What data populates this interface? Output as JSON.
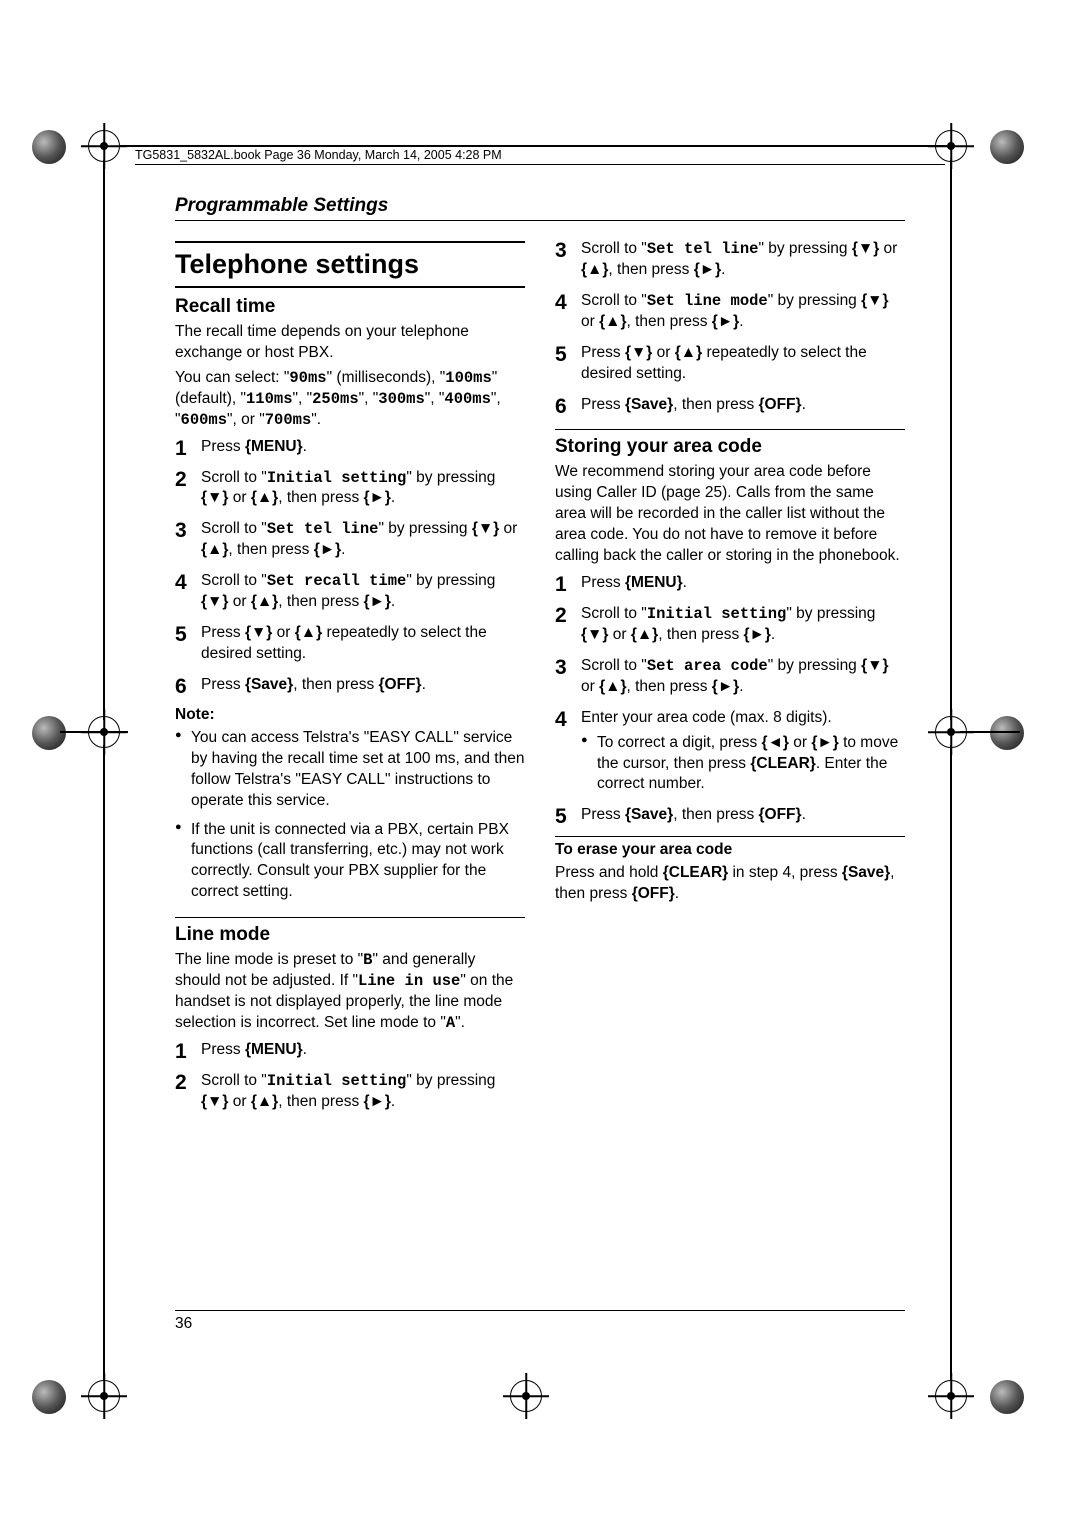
{
  "header": "TG5831_5832AL.book  Page 36  Monday, March 14, 2005  4:28 PM",
  "section_label": "Programmable Settings",
  "title": "Telephone settings",
  "page_number": "36",
  "recall": {
    "heading": "Recall time",
    "intro1": "The recall time depends on your telephone exchange or host PBX.",
    "intro2a": "You can select: \"",
    "ms90": "90ms",
    "intro2b": "\" (milliseconds), \"",
    "ms100": "100ms",
    "intro2c": "\" (default), \"",
    "ms110": "110ms",
    "intro2d": "\", \"",
    "ms250": "250ms",
    "intro2e": "\", \"",
    "ms300": "300ms",
    "intro2f": "\", \"",
    "ms400": "400ms",
    "intro2g": "\", \"",
    "ms600": "600ms",
    "intro2h": "\", or \"",
    "ms700": "700ms",
    "intro2i": "\".",
    "steps": [
      "Press {MENU}.",
      "Scroll to \"<mono>Initial setting</mono>\" by pressing {▼} or {▲}, then press {►}.",
      "Scroll to \"<mono>Set tel line</mono>\" by pressing {▼} or {▲}, then press {►}.",
      "Scroll to \"<mono>Set recall time</mono>\" by pressing {▼} or {▲}, then press {►}.",
      "Press {▼} or {▲} repeatedly to select the desired setting.",
      "Press {Save}, then press {OFF}."
    ],
    "note_label": "Note:",
    "notes": [
      "You can access Telstra's \"EASY CALL\" service by having the recall time set at 100 ms, and then follow Telstra's \"EASY CALL\" instructions to operate this service.",
      "If the unit is connected via a PBX, certain PBX functions (call transferring, etc.) may not work correctly. Consult your PBX supplier for the correct setting."
    ]
  },
  "linemode": {
    "heading": "Line mode",
    "intro_a": "The line mode is preset to \"",
    "B": "B",
    "intro_b": "\" and generally should not be adjusted. If \"",
    "lineinuse": "Line in use",
    "intro_c": "\" on the handset is not displayed properly, the line mode selection is incorrect. Set line mode to \"",
    "A": "A",
    "intro_d": "\".",
    "steps": [
      "Press {MENU}.",
      "Scroll to \"<mono>Initial setting</mono>\" by pressing {▼} or {▲}, then press {►}.",
      "Scroll to \"<mono>Set tel line</mono>\" by pressing {▼} or {▲}, then press {►}.",
      "Scroll to \"<mono>Set line mode</mono>\" by pressing {▼} or {▲}, then press {►}.",
      "Press {▼} or {▲} repeatedly to select the desired setting.",
      "Press {Save}, then press {OFF}."
    ]
  },
  "areacode": {
    "heading": "Storing your area code",
    "intro": "We recommend storing your area code before using Caller ID (page 25). Calls from the same area will be recorded in the caller list without the area code. You do not have to remove it before calling back the caller or storing in the phonebook.",
    "steps": [
      "Press {MENU}.",
      "Scroll to \"<mono>Initial setting</mono>\" by pressing {▼} or {▲}, then press {►}.",
      "Scroll to \"<mono>Set area code</mono>\" by pressing {▼} or {▲}, then press {►}.",
      "Enter your area code (max. 8 digits).",
      "Press {Save}, then press {OFF}."
    ],
    "step4_sub": "To correct a digit, press {◄} or {►} to move the cursor, then press {CLEAR}. Enter the correct number.",
    "erase_heading": "To erase your area code",
    "erase_body": "Press and hold {CLEAR} in step 4, press {Save}, then press {OFF}."
  }
}
